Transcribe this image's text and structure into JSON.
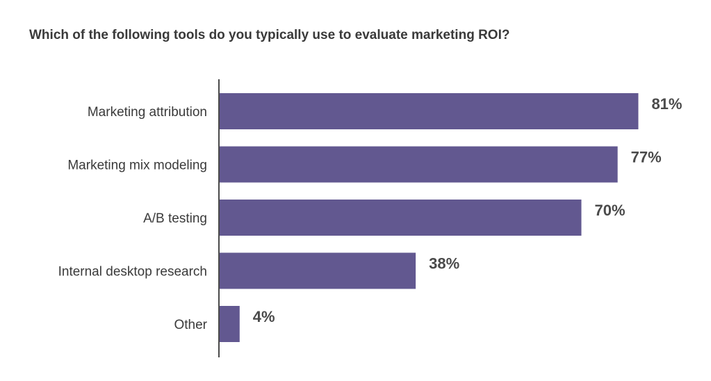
{
  "chart_data": {
    "type": "bar",
    "orientation": "horizontal",
    "title": "Which of the following tools do you typically use to evaluate marketing ROI?",
    "categories": [
      "Marketing attribution",
      "Marketing mix modeling",
      "A/B testing",
      "Internal desktop research",
      "Other"
    ],
    "values": [
      81,
      77,
      70,
      38,
      4
    ],
    "value_labels": [
      "81%",
      "77%",
      "70%",
      "38%",
      "4%"
    ],
    "unit": "%",
    "xlim": [
      0,
      100
    ],
    "grid": false,
    "legend": "none",
    "bar_color": "#625890",
    "axis_color": "#4a4a4a"
  }
}
